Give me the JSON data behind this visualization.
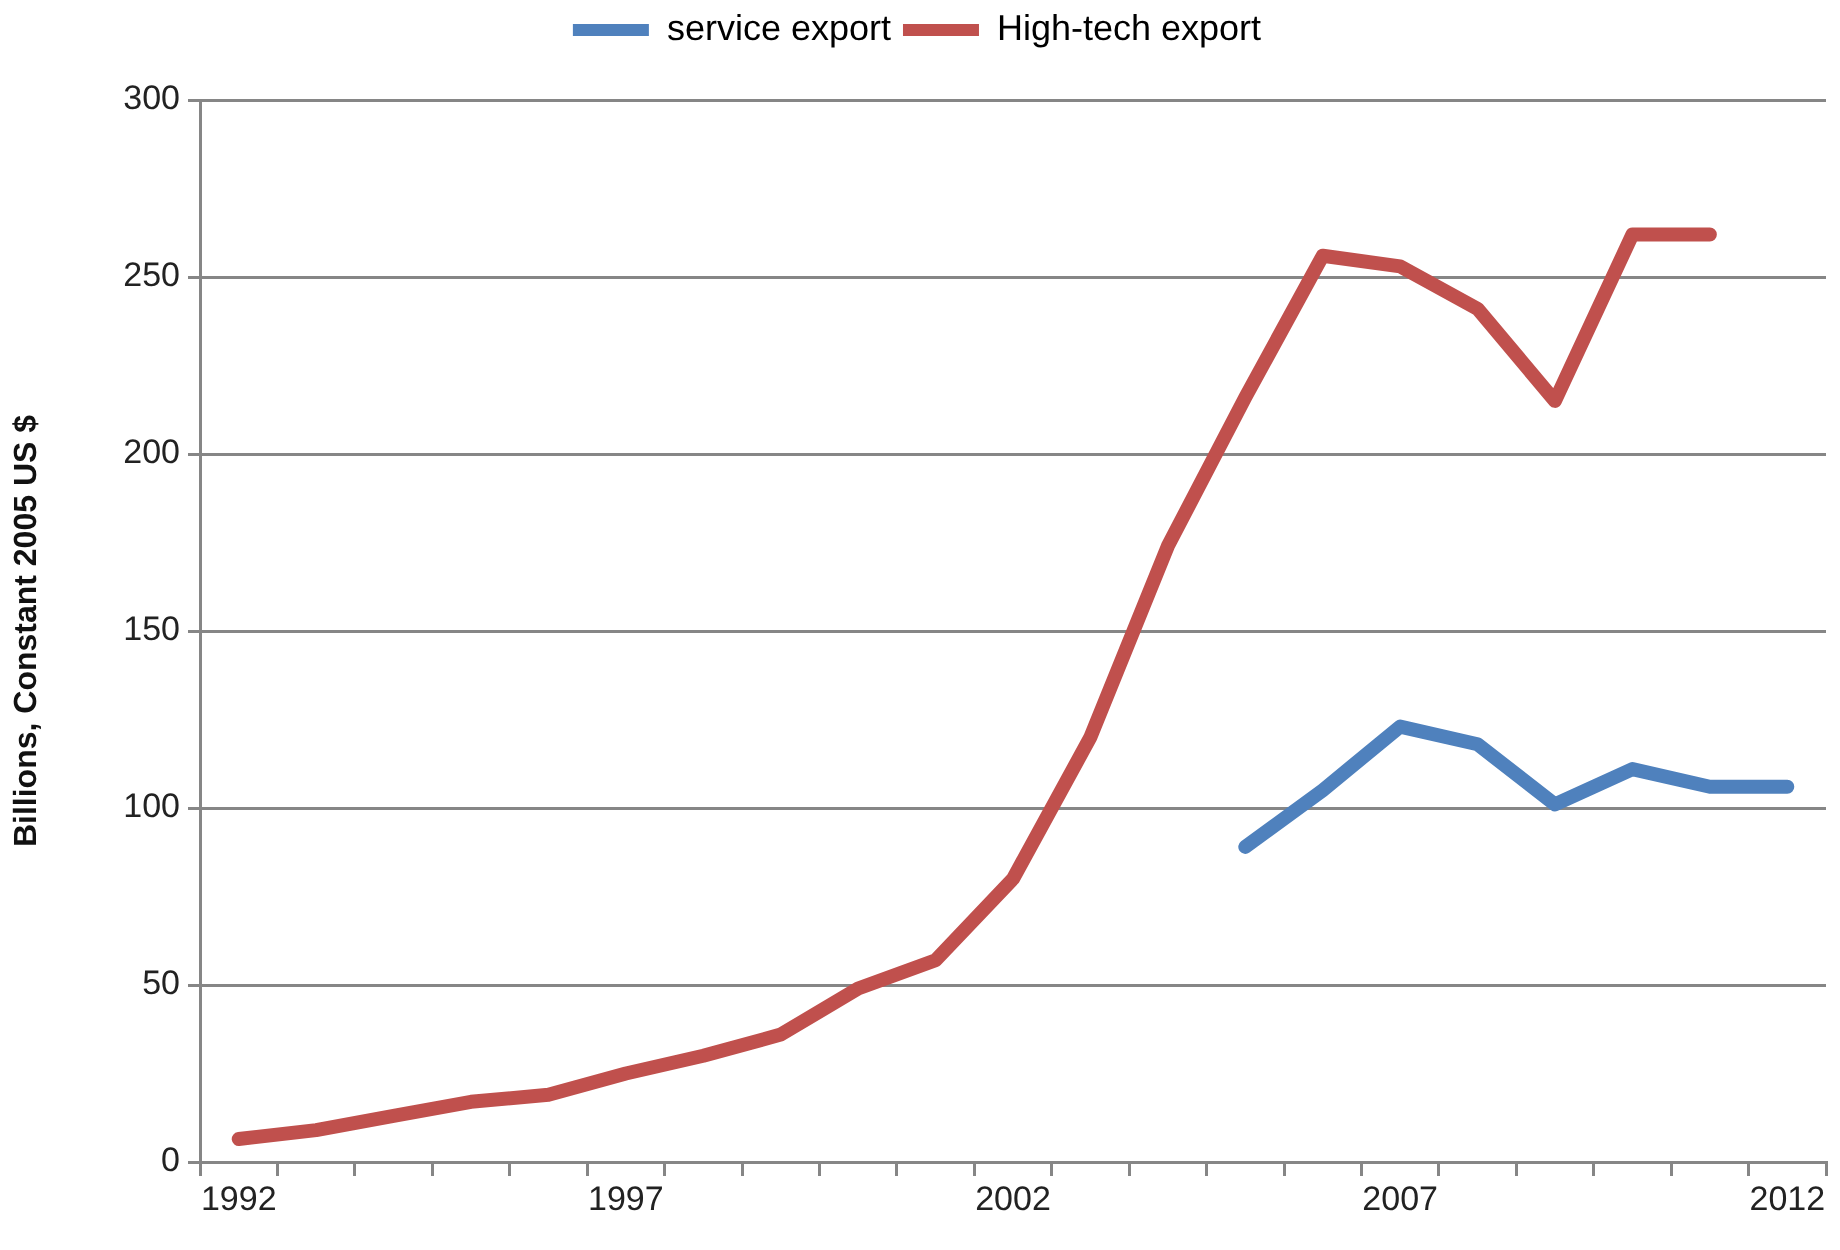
{
  "chart_data": {
    "type": "line",
    "ylabel": "Billions, Constant 2005 US $",
    "categories": [
      "1992",
      null,
      null,
      null,
      null,
      "1997",
      null,
      null,
      null,
      null,
      "2002",
      null,
      null,
      null,
      null,
      "2007",
      null,
      null,
      null,
      null,
      "2012"
    ],
    "series": [
      {
        "name": "service export",
        "color": "#4f81bd",
        "values": [
          null,
          null,
          null,
          null,
          null,
          null,
          null,
          null,
          null,
          null,
          null,
          null,
          null,
          89,
          105,
          123,
          118,
          101,
          111,
          106,
          106
        ]
      },
      {
        "name": "High-tech export",
        "color": "#c0504d",
        "values": [
          6.5,
          9,
          13,
          17,
          19,
          25,
          30,
          36,
          49,
          57,
          80,
          120,
          174,
          216,
          256,
          253,
          241,
          215,
          262,
          262,
          null
        ]
      }
    ],
    "ylim": [
      0,
      300
    ],
    "yticks": [
      0,
      50,
      100,
      150,
      200,
      250,
      300
    ],
    "grid": "y",
    "legend": "top",
    "marker": "none",
    "line_style": "solid"
  }
}
